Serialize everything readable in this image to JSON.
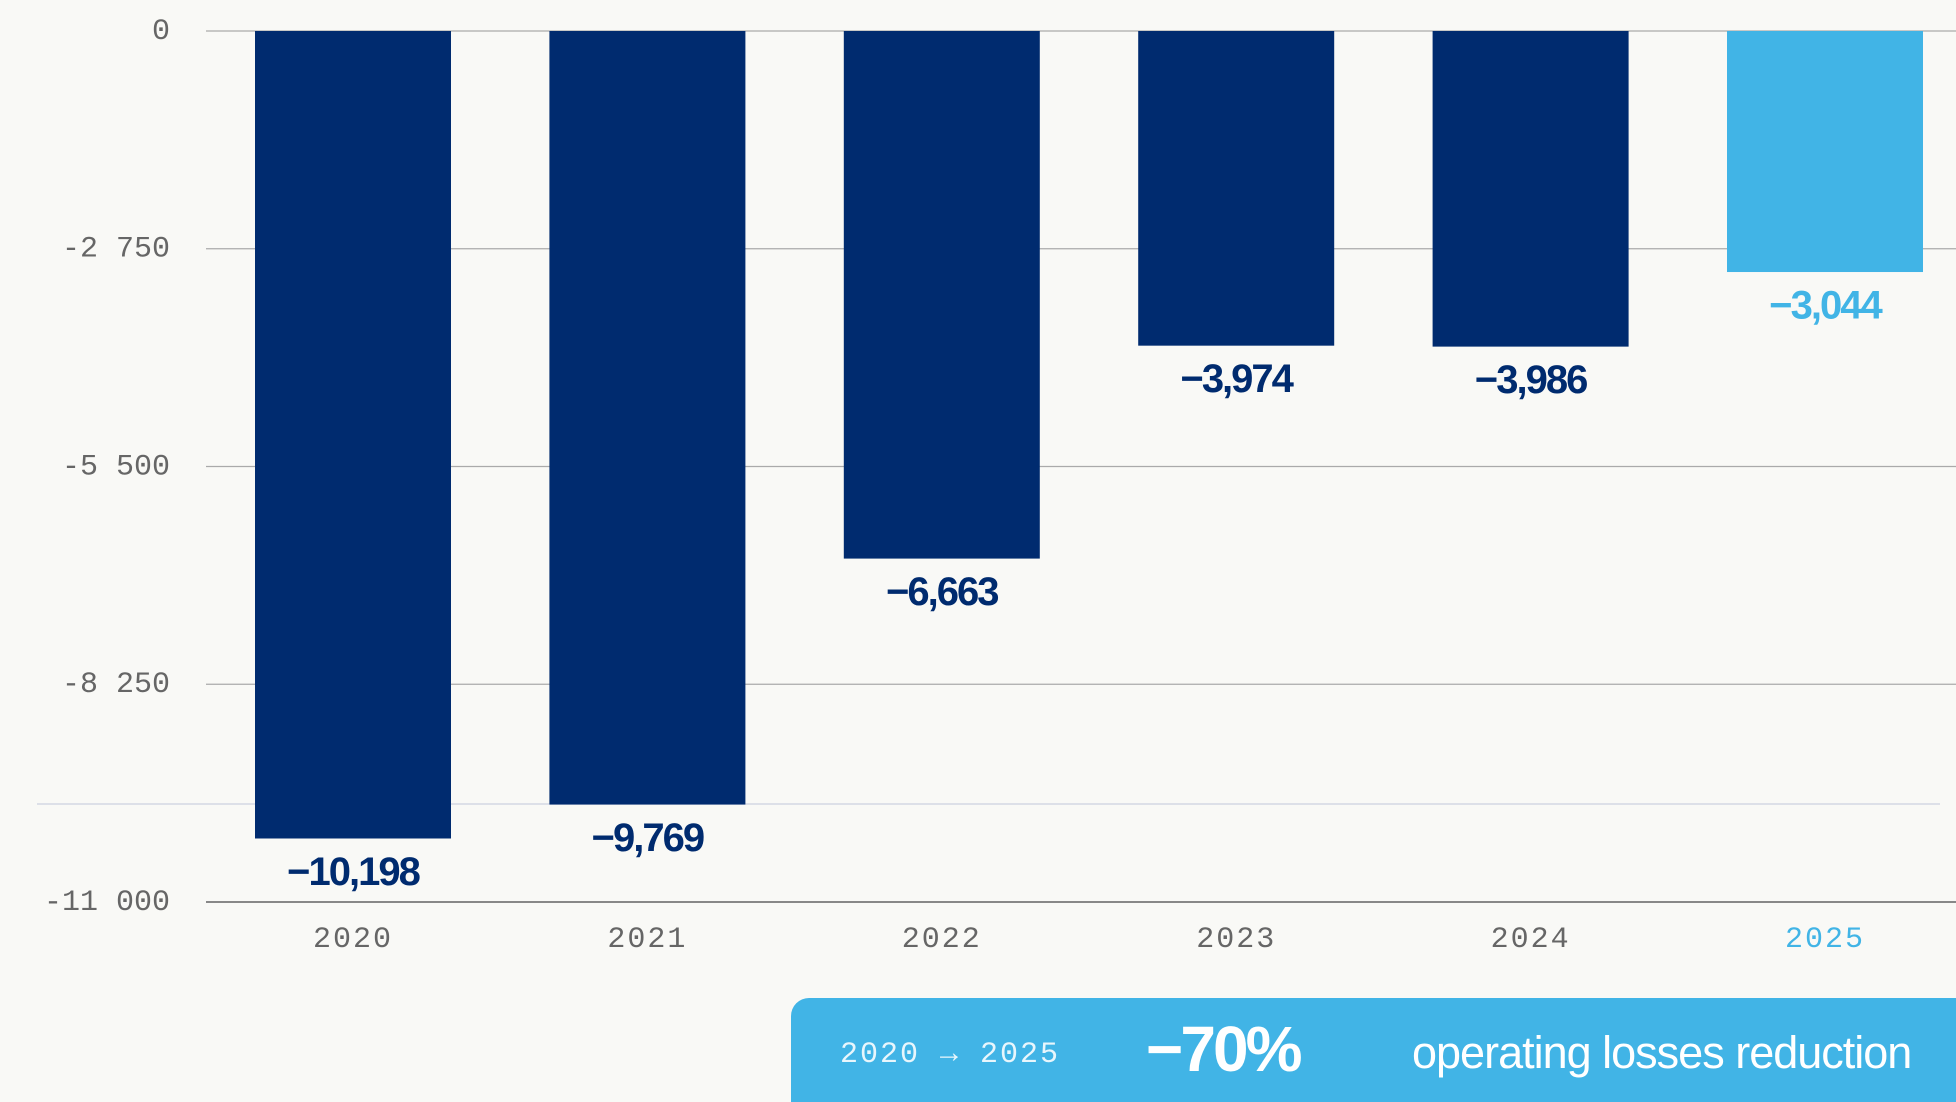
{
  "chart_data": {
    "type": "bar",
    "categories": [
      "2020",
      "2021",
      "2022",
      "2023",
      "2024",
      "2025"
    ],
    "values": [
      -10198,
      -9769,
      -6663,
      -3974,
      -3986,
      -3044
    ],
    "value_labels": [
      "−10,198",
      "−9,769",
      "−6,663",
      "−3,974",
      "−3,986",
      "−3,044"
    ],
    "colors": [
      "#002b6f",
      "#002b6f",
      "#002b6f",
      "#002b6f",
      "#002b6f",
      "#41b4e6"
    ],
    "ylim": [
      -11000,
      0
    ],
    "yticks": [
      0,
      {
        "value": -2750,
        "label": "-2 750"
      },
      {
        "value": -5500,
        "label": "-5 500"
      },
      {
        "value": -8250,
        "label": "-8 250"
      },
      {
        "value": -11000,
        "label": "-11 000"
      }
    ],
    "grid": true,
    "annotation": {
      "period": "2020 → 2025",
      "value": "−70%",
      "text": "operating losses reduction"
    }
  }
}
